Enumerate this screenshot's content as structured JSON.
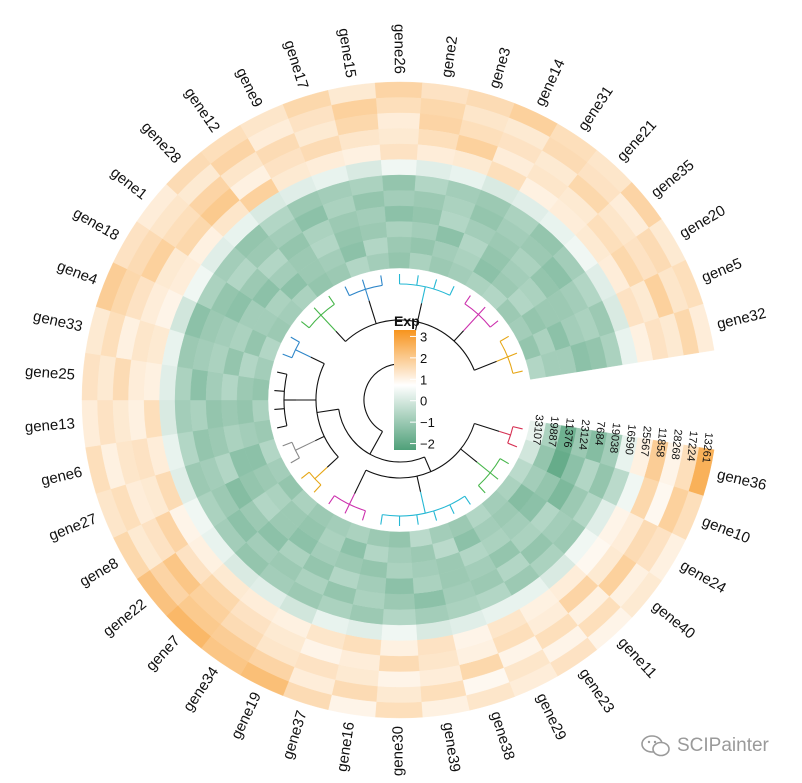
{
  "chart_data": {
    "type": "heatmap",
    "layout": "circular",
    "legend": {
      "title": "Exp",
      "ticks": [
        "3",
        "2",
        "1",
        "0",
        "−1",
        "−2"
      ],
      "range": [
        -2.3,
        3.3
      ]
    },
    "colors": {
      "high": "#f7941d",
      "mid": "#ffffff",
      "low": "#4fa079"
    },
    "samples": [
      "13261",
      "17224",
      "28268",
      "11858",
      "25567",
      "16590",
      "19038",
      "7684",
      "23124",
      "11376",
      "19887",
      "33107"
    ],
    "genes": [
      "gene36",
      "gene10",
      "gene24",
      "gene40",
      "gene11",
      "gene23",
      "gene29",
      "gene38",
      "gene39",
      "gene30",
      "gene16",
      "gene37",
      "gene19",
      "gene34",
      "gene7",
      "gene22",
      "gene8",
      "gene27",
      "gene6",
      "gene13",
      "gene25",
      "gene33",
      "gene4",
      "gene18",
      "gene1",
      "gene28",
      "gene12",
      "gene9",
      "gene17",
      "gene15",
      "gene26",
      "gene2",
      "gene3",
      "gene14",
      "gene31",
      "gene21",
      "gene35",
      "gene20",
      "gene5",
      "gene32"
    ],
    "values": [
      [
        2.2,
        0.9,
        0.3,
        1.4,
        0.4,
        -0.3,
        -1.2,
        -1.6,
        -1.3,
        -1.9,
        -1.1,
        -0.3
      ],
      [
        0.9,
        1.3,
        0.2,
        1.1,
        -0.2,
        -0.9,
        -1.4,
        -1.0,
        -1.5,
        -2.0,
        -1.4,
        -0.6
      ],
      [
        0.4,
        0.8,
        1.0,
        0.5,
        0.3,
        -0.4,
        -1.0,
        -1.3,
        -1.7,
        -1.4,
        -1.2,
        -0.9
      ],
      [
        0.6,
        0.4,
        1.3,
        0.6,
        0.2,
        -0.2,
        -1.3,
        -1.2,
        -1.0,
        -1.5,
        -1.6,
        -1.1
      ],
      [
        0.3,
        0.9,
        0.4,
        1.2,
        0.5,
        -0.5,
        -1.1,
        -1.4,
        -1.1,
        -1.2,
        -1.3,
        -1.2
      ],
      [
        0.8,
        0.3,
        0.9,
        0.5,
        0.4,
        -0.3,
        -1.3,
        -1.0,
        -1.4,
        -1.1,
        -1.2,
        -1.0
      ],
      [
        0.5,
        0.7,
        0.3,
        0.9,
        0.7,
        -0.3,
        -1.0,
        -1.3,
        -1.2,
        -1.0,
        -1.5,
        -1.3
      ],
      [
        0.7,
        0.2,
        1.1,
        0.4,
        0.3,
        -0.4,
        -1.1,
        -1.2,
        -1.3,
        -1.3,
        -0.9,
        -1.2
      ],
      [
        0.4,
        0.9,
        0.5,
        0.7,
        0.8,
        -0.5,
        -1.2,
        -1.5,
        -1.1,
        -1.2,
        -1.3,
        -0.9
      ],
      [
        0.9,
        0.6,
        0.3,
        1.0,
        0.4,
        -0.2,
        -1.0,
        -1.3,
        -1.5,
        -1.1,
        -1.2,
        -1.4
      ],
      [
        0.3,
        1.0,
        0.6,
        0.5,
        0.9,
        -0.4,
        -1.3,
        -1.1,
        -1.2,
        -1.4,
        -1.0,
        -1.3
      ],
      [
        1.0,
        0.5,
        0.8,
        0.3,
        0.7,
        -0.3,
        -1.1,
        -1.4,
        -1.0,
        -1.3,
        -1.5,
        -1.1
      ],
      [
        1.8,
        1.2,
        0.7,
        0.6,
        0.4,
        -0.6,
        -1.3,
        -1.1,
        -1.4,
        -1.2,
        -1.1,
        -1.2
      ],
      [
        1.6,
        1.4,
        1.0,
        0.8,
        0.5,
        -0.4,
        -1.2,
        -1.3,
        -1.1,
        -1.5,
        -1.4,
        -1.3
      ],
      [
        2.0,
        1.5,
        1.3,
        1.1,
        0.6,
        -0.5,
        -1.4,
        -1.2,
        -1.5,
        -1.3,
        -1.3,
        -1.1
      ],
      [
        1.7,
        1.2,
        1.6,
        0.8,
        0.4,
        -0.3,
        -1.2,
        -1.5,
        -1.3,
        -1.0,
        -1.1,
        -1.4
      ],
      [
        1.1,
        0.6,
        0.8,
        1.2,
        0.3,
        -0.2,
        -1.1,
        -1.3,
        -1.6,
        -1.4,
        -1.3,
        -1.2
      ],
      [
        0.7,
        0.9,
        0.5,
        0.6,
        1.0,
        -0.4,
        -1.3,
        -1.2,
        -1.0,
        -1.5,
        -1.5,
        -1.0
      ],
      [
        0.9,
        0.4,
        0.7,
        0.8,
        0.5,
        -0.3,
        -1.0,
        -1.4,
        -1.3,
        -1.1,
        -1.2,
        -1.3
      ],
      [
        0.5,
        0.8,
        0.6,
        0.4,
        0.9,
        -0.5,
        -1.2,
        -1.1,
        -1.4,
        -1.3,
        -1.4,
        -1.1
      ],
      [
        0.8,
        0.6,
        1.0,
        0.5,
        0.4,
        -0.4,
        -1.1,
        -1.5,
        -1.2,
        -1.0,
        -1.3,
        -1.4
      ],
      [
        0.6,
        0.9,
        0.4,
        0.7,
        0.6,
        -0.3,
        -1.3,
        -1.2,
        -1.1,
        -1.4,
        -1.0,
        -1.2
      ],
      [
        1.4,
        1.1,
        0.8,
        0.5,
        0.3,
        -0.6,
        -1.5,
        -1.3,
        -1.2,
        -1.1,
        -1.4,
        -1.0
      ],
      [
        0.8,
        1.0,
        1.3,
        0.6,
        0.5,
        -0.2,
        -1.1,
        -1.4,
        -1.5,
        -1.2,
        -1.2,
        -1.3
      ],
      [
        0.5,
        0.7,
        0.9,
        1.1,
        0.4,
        -0.4,
        -1.2,
        -1.0,
        -1.3,
        -1.5,
        -1.1,
        -1.2
      ],
      [
        1.0,
        0.6,
        1.2,
        1.5,
        0.7,
        -0.3,
        -1.4,
        -1.3,
        -1.0,
        -1.2,
        -1.5,
        -1.1
      ],
      [
        0.9,
        1.2,
        0.7,
        0.4,
        1.3,
        -0.5,
        -1.0,
        -1.2,
        -1.4,
        -1.3,
        -1.3,
        -1.4
      ],
      [
        0.7,
        0.5,
        1.0,
        0.8,
        0.6,
        -0.4,
        -1.3,
        -1.5,
        -1.1,
        -1.0,
        -1.2,
        -1.3
      ],
      [
        1.1,
        0.8,
        0.6,
        1.0,
        0.5,
        -0.3,
        -1.2,
        -1.1,
        -1.3,
        -1.4,
        -1.5,
        -1.0
      ],
      [
        0.6,
        1.3,
        1.1,
        0.7,
        0.4,
        -0.5,
        -1.1,
        -1.4,
        -1.2,
        -1.3,
        -1.0,
        -1.2
      ],
      [
        1.2,
        0.9,
        0.5,
        0.6,
        0.8,
        -0.2,
        -1.4,
        -1.2,
        -1.5,
        -1.1,
        -1.3,
        -1.4
      ],
      [
        0.8,
        1.1,
        1.2,
        0.9,
        0.5,
        -0.4,
        -1.0,
        -1.3,
        -1.4,
        -1.2,
        -1.4,
        -1.1
      ],
      [
        1.0,
        0.7,
        0.9,
        1.3,
        0.6,
        -0.3,
        -1.2,
        -1.1,
        -1.0,
        -1.5,
        -1.2,
        -1.3
      ],
      [
        1.3,
        0.6,
        0.8,
        0.5,
        0.9,
        -0.5,
        -1.3,
        -1.4,
        -1.2,
        -1.0,
        -1.1,
        -1.2
      ],
      [
        0.9,
        1.0,
        0.6,
        0.7,
        0.4,
        -0.4,
        -1.1,
        -1.2,
        -1.3,
        -1.4,
        -1.5,
        -1.1
      ],
      [
        0.7,
        0.8,
        1.1,
        0.6,
        0.5,
        -0.3,
        -1.4,
        -1.3,
        -1.1,
        -1.2,
        -1.3,
        -1.0
      ],
      [
        1.2,
        0.5,
        0.7,
        0.9,
        0.6,
        -0.2,
        -1.2,
        -1.5,
        -1.4,
        -1.1,
        -1.0,
        -1.3
      ],
      [
        0.6,
        1.0,
        0.8,
        1.1,
        0.5,
        -0.4,
        -1.0,
        -1.2,
        -1.3,
        -1.3,
        -1.4,
        -1.2
      ],
      [
        0.9,
        0.7,
        1.3,
        0.6,
        0.8,
        -0.5,
        -1.3,
        -1.1,
        -1.2,
        -1.5,
        -1.1,
        -1.4
      ],
      [
        0.5,
        1.1,
        0.6,
        0.8,
        0.4,
        -0.3,
        -1.1,
        -1.4,
        -1.5,
        -1.2,
        -1.2,
        -1.0
      ]
    ],
    "dendrogram_colors": [
      "#d62f52",
      "#46b64a",
      "#25b8d4",
      "#cc2fad",
      "#e6a615",
      "#888888",
      "#111111",
      "#2e86c9"
    ]
  },
  "watermark": {
    "text": "SCIPainter",
    "icon": "wechat-icon"
  }
}
